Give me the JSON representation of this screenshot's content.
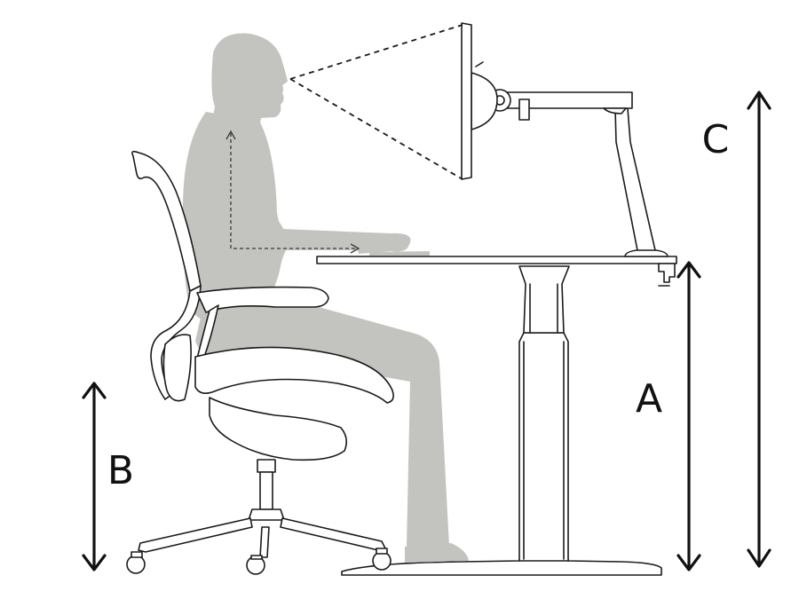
{
  "labels": {
    "a": "A",
    "b": "B",
    "c": "C"
  },
  "colors": {
    "silhouette": "#c3c4bf",
    "outline": "#1a1a1a",
    "arrow": "#111111",
    "background": "#ffffff"
  }
}
